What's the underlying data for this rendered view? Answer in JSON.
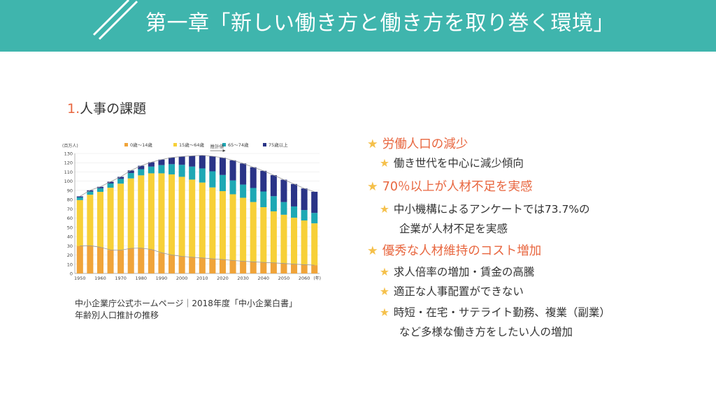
{
  "header": {
    "title": "第一章「新しい働き方と働き方を取り巻く環境」",
    "color": "#3fb5ad"
  },
  "section": {
    "number": "1.",
    "title": "人事の課題"
  },
  "caption": {
    "line1": "中小企業庁公式ホームページ｜2018年度「中小企業白書」",
    "line2": "年齢別人口推計の推移"
  },
  "bullets": {
    "star": "★",
    "b1": "労働人口の減少",
    "b1_1": "働き世代を中心に減少傾向",
    "b2": "70％以上が人材不足を実感",
    "b2_1a": "中小機構によるアンケートでは73.7%の",
    "b2_1b": "企業が人材不足を実感",
    "b3": "優秀な人材維持のコスト増加",
    "b3_1": "求人倍率の増加・賃金の高騰",
    "b3_2": "適正な人事配置ができない",
    "b3_3a": "時短・在宅・サテライト勤務、複業（副業）",
    "b3_3b": "など多様な働き方をしたい人の増加"
  },
  "chart_data": {
    "type": "bar",
    "stacked": true,
    "ylabel": "(百万人)",
    "xlabel": "(年)",
    "ylim": [
      0,
      130
    ],
    "yticks": [
      0,
      10,
      20,
      30,
      40,
      50,
      60,
      70,
      80,
      90,
      100,
      110,
      120,
      130
    ],
    "xticks": [
      "1950",
      "1960",
      "1970",
      "1980",
      "1990",
      "2000",
      "2010",
      "2020",
      "2030",
      "2040",
      "2050",
      "2060"
    ],
    "annotation": "推計値",
    "categories": [
      "1950",
      "1955",
      "1960",
      "1965",
      "1970",
      "1975",
      "1980",
      "1985",
      "1990",
      "1995",
      "2000",
      "2005",
      "2010",
      "2015",
      "2020",
      "2025",
      "2030",
      "2035",
      "2040",
      "2045",
      "2050",
      "2055",
      "2060",
      "2065"
    ],
    "series": [
      {
        "name": "0歳〜14歳",
        "color": "#f0a43a",
        "values": [
          29.8,
          30.1,
          28.4,
          25.5,
          25.2,
          27.2,
          27.5,
          26.0,
          22.5,
          20.0,
          18.5,
          17.6,
          16.8,
          15.9,
          15.1,
          14.1,
          13.2,
          12.5,
          12.0,
          11.5,
          10.8,
          10.1,
          9.5,
          9.0
        ]
      },
      {
        "name": "15歳〜64歳",
        "color": "#f7d038",
        "values": [
          49.7,
          55.2,
          60.0,
          67.4,
          72.1,
          75.8,
          78.8,
          82.5,
          86.0,
          87.3,
          86.2,
          84.1,
          81.7,
          77.3,
          74.1,
          71.7,
          68.8,
          64.9,
          59.8,
          55.8,
          52.8,
          50.3,
          47.9,
          45.3
        ]
      },
      {
        "name": "65〜74歳",
        "color": "#1ea8b4",
        "values": [
          2.9,
          3.4,
          3.9,
          4.6,
          5.2,
          5.8,
          6.7,
          7.3,
          8.9,
          11.1,
          13.0,
          14.1,
          15.3,
          17.5,
          17.5,
          15.0,
          14.3,
          15.2,
          17.0,
          16.4,
          13.8,
          12.2,
          11.3,
          11.3
        ]
      },
      {
        "name": "75歳以上",
        "color": "#2a3487",
        "values": [
          1.1,
          1.4,
          1.6,
          1.9,
          2.2,
          2.8,
          3.7,
          4.7,
          6.0,
          7.2,
          9.0,
          11.6,
          14.2,
          16.3,
          18.7,
          21.8,
          22.9,
          22.5,
          22.4,
          22.8,
          24.2,
          24.3,
          23.4,
          22.9
        ]
      }
    ]
  }
}
